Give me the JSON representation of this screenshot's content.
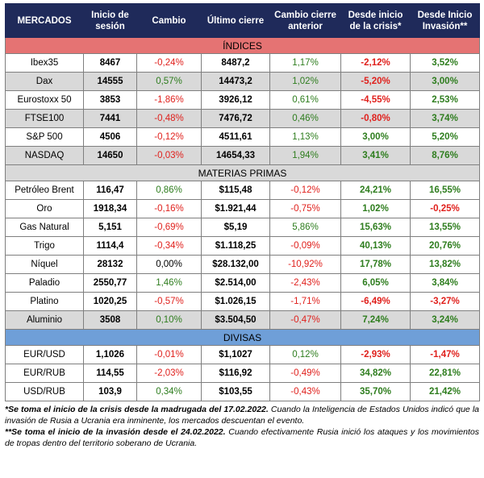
{
  "columns": [
    "MERCADOS",
    "Inicio de sesión",
    "Cambio",
    "Último cierre",
    "Cambio cierre anterior",
    "Desde inicio de la crisis*",
    "Desde Inicio Invasión**"
  ],
  "sections": [
    {
      "title": "ÍNDICES",
      "rows": [
        {
          "name": "Ibex35",
          "open": "8467",
          "change": "-0,24%",
          "last": "8487,2",
          "prev": "1,17%",
          "crisis": "-2,12%",
          "invasion": "3,52%",
          "shaded": false
        },
        {
          "name": "Dax",
          "open": "14555",
          "change": "0,57%",
          "last": "14473,2",
          "prev": "1,02%",
          "crisis": "-5,20%",
          "invasion": "3,00%",
          "shaded": true
        },
        {
          "name": "Eurostoxx 50",
          "open": "3853",
          "change": "-1,86%",
          "last": "3926,12",
          "prev": "0,61%",
          "crisis": "-4,55%",
          "invasion": "2,53%",
          "shaded": false
        },
        {
          "name": "FTSE100",
          "open": "7441",
          "change": "-0,48%",
          "last": "7476,72",
          "prev": "0,46%",
          "crisis": "-0,80%",
          "invasion": "3,74%",
          "shaded": true
        },
        {
          "name": "S&P 500",
          "open": "4506",
          "change": "-0,12%",
          "last": "4511,61",
          "prev": "1,13%",
          "crisis": "3,00%",
          "invasion": "5,20%",
          "shaded": false
        },
        {
          "name": "NASDAQ",
          "open": "14650",
          "change": "-0,03%",
          "last": "14654,33",
          "prev": "1,94%",
          "crisis": "3,41%",
          "invasion": "8,76%",
          "shaded": true
        }
      ]
    },
    {
      "title": "MATERIAS PRIMAS",
      "rows": [
        {
          "name": "Petróleo Brent",
          "open": "116,47",
          "change": "0,86%",
          "last": "$115,48",
          "prev": "-0,12%",
          "crisis": "24,21%",
          "invasion": "16,55%",
          "shaded": false
        },
        {
          "name": "Oro",
          "open": "1918,34",
          "change": "-0,16%",
          "last": "$1.921,44",
          "prev": "-0,75%",
          "crisis": "1,02%",
          "invasion": "-0,25%",
          "shaded": false
        },
        {
          "name": "Gas Natural",
          "open": "5,151",
          "change": "-0,69%",
          "last": "$5,19",
          "prev": "5,86%",
          "crisis": "15,63%",
          "invasion": "13,55%",
          "shaded": false
        },
        {
          "name": "Trigo",
          "open": "1114,4",
          "change": "-0,34%",
          "last": "$1.118,25",
          "prev": "-0,09%",
          "crisis": "40,13%",
          "invasion": "20,76%",
          "shaded": false
        },
        {
          "name": "Níquel",
          "open": "28132",
          "change": "0,00%",
          "last": "$28.132,00",
          "prev": "-10,92%",
          "crisis": "17,78%",
          "invasion": "13,82%",
          "shaded": false
        },
        {
          "name": "Paladio",
          "open": "2550,77",
          "change": "1,46%",
          "last": "$2.514,00",
          "prev": "-2,43%",
          "crisis": "6,05%",
          "invasion": "3,84%",
          "shaded": false
        },
        {
          "name": "Platino",
          "open": "1020,25",
          "change": "-0,57%",
          "last": "$1.026,15",
          "prev": "-1,71%",
          "crisis": "-6,49%",
          "invasion": "-3,27%",
          "shaded": false
        },
        {
          "name": "Aluminio",
          "open": "3508",
          "change": "0,10%",
          "last": "$3.504,50",
          "prev": "-0,47%",
          "crisis": "7,24%",
          "invasion": "3,24%",
          "shaded": true
        }
      ]
    },
    {
      "title": "DIVISAS",
      "rows": [
        {
          "name": "EUR/USD",
          "open": "1,1026",
          "change": "-0,01%",
          "last": "$1,1027",
          "prev": "0,12%",
          "crisis": "-2,93%",
          "invasion": "-1,47%",
          "shaded": false
        },
        {
          "name": "EUR/RUB",
          "open": "114,55",
          "change": "-2,03%",
          "last": "$116,92",
          "prev": "-0,49%",
          "crisis": "34,82%",
          "invasion": "22,81%",
          "shaded": false
        },
        {
          "name": "USD/RUB",
          "open": "103,9",
          "change": "0,34%",
          "last": "$103,55",
          "prev": "-0,43%",
          "crisis": "35,70%",
          "invasion": "21,42%",
          "shaded": false
        }
      ]
    }
  ],
  "notes": {
    "note1_bold": "*Se toma el inicio de la crisis desde la madrugada del 17.02.2022.",
    "note1_text": " Cuando la Inteligencia de Estados Unidos indicó que la invasión de Rusia a Ucrania era inminente, los mercados descuentan el evento.",
    "note2_bold": "**Se toma el inicio de la invasión desde el 24.02.2022.",
    "note2_text": " Cuando efectivamente Rusia inició los ataques y los movimientos de tropas dentro del territorio soberano de Ucrania."
  },
  "colors": {
    "positive": "#2e7d1e",
    "negative": "#e0201c",
    "header": "#1f2a5a",
    "indices": "#e57373",
    "materias": "#d9d9d9",
    "divisas": "#6f9fd8"
  }
}
